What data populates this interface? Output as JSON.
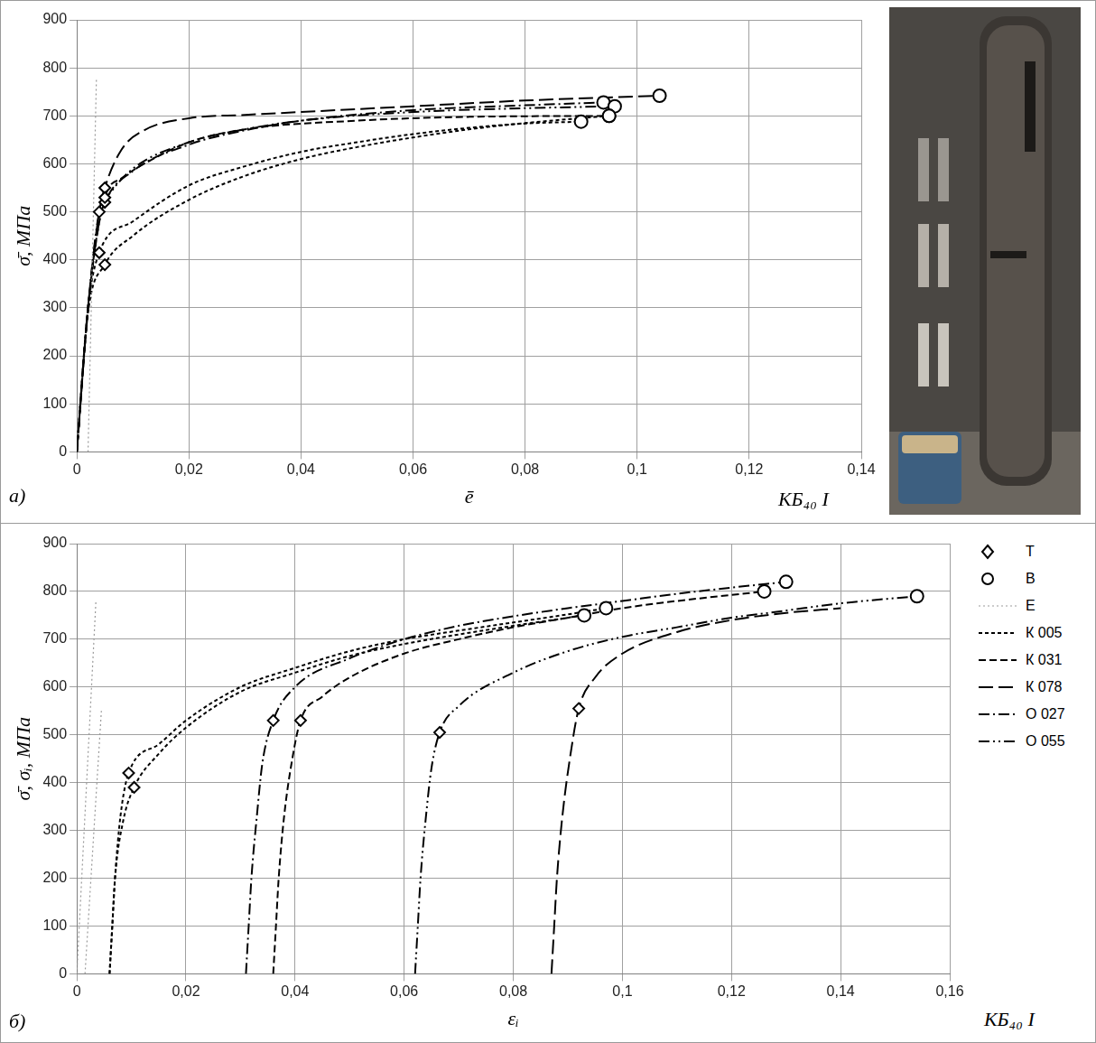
{
  "chart_data": [
    {
      "type": "line",
      "x_label": "ē",
      "y_label": "σ̄, МПа",
      "xlim": [
        0,
        0.14
      ],
      "ylim": [
        0,
        900
      ],
      "xticks": [
        0,
        {
          "value": 0.02,
          "label": "0,02"
        },
        {
          "value": 0.04,
          "label": "0,04"
        },
        {
          "value": 0.06,
          "label": "0,06"
        },
        {
          "value": 0.08,
          "label": "0,08"
        },
        {
          "value": 0.1,
          "label": "0,1"
        },
        {
          "value": 0.12,
          "label": "0,12"
        },
        {
          "value": 0.14,
          "label": "0,14"
        }
      ],
      "yticks": [
        0,
        100,
        200,
        300,
        400,
        500,
        600,
        700,
        800,
        900
      ],
      "grid": true,
      "annotations": [
        "а)",
        "КБ₄₀ I"
      ],
      "series": [
        {
          "type": "line",
          "color": "#999999",
          "line_style": "dotted",
          "x": [
            0.002,
            0.0035
          ],
          "values": [
            0,
            780
          ]
        },
        {
          "type": "line",
          "color": "#000000",
          "line_style": "long_dash",
          "x": [
            0,
            0.002,
            0.004,
            0.005,
            0.008,
            0.012,
            0.02,
            0.03,
            0.04,
            0.06,
            0.08,
            0.104
          ],
          "values": [
            0,
            300,
            500,
            550,
            630,
            670,
            695,
            702,
            708,
            720,
            732,
            742
          ]
        },
        {
          "type": "line",
          "color": "#000000",
          "line_style": "dash_dot",
          "x": [
            0,
            0.002,
            0.004,
            0.005,
            0.01,
            0.02,
            0.03,
            0.04,
            0.06,
            0.08,
            0.094
          ],
          "values": [
            0,
            300,
            480,
            520,
            585,
            640,
            670,
            690,
            712,
            722,
            728
          ]
        },
        {
          "type": "line",
          "color": "#000000",
          "line_style": "dash_dot_dot",
          "x": [
            0,
            0.002,
            0.004,
            0.006,
            0.01,
            0.02,
            0.03,
            0.04,
            0.06,
            0.08,
            0.096
          ],
          "values": [
            0,
            300,
            500,
            540,
            590,
            645,
            672,
            690,
            708,
            716,
            720
          ]
        },
        {
          "type": "line",
          "color": "#000000",
          "line_style": "dashed",
          "x": [
            0,
            0.002,
            0.005,
            0.008,
            0.012,
            0.02,
            0.03,
            0.05,
            0.07,
            0.095
          ],
          "values": [
            0,
            300,
            530,
            570,
            600,
            645,
            672,
            690,
            698,
            700
          ]
        },
        {
          "type": "line",
          "color": "#000000",
          "line_style": "short_dash",
          "x": [
            0,
            0.002,
            0.004,
            0.01,
            0.02,
            0.03,
            0.04,
            0.05,
            0.06,
            0.07,
            0.08,
            0.09
          ],
          "values": [
            0,
            300,
            415,
            480,
            555,
            595,
            625,
            645,
            662,
            675,
            684,
            688
          ]
        },
        {
          "type": "line",
          "color": "#000000",
          "line_style": "short_dash",
          "x": [
            0,
            0.002,
            0.005,
            0.01,
            0.02,
            0.03,
            0.04,
            0.05,
            0.06,
            0.07,
            0.08,
            0.095
          ],
          "values": [
            0,
            290,
            390,
            450,
            525,
            575,
            610,
            635,
            655,
            672,
            685,
            700
          ]
        },
        {
          "type": "scatter",
          "color": "#000000",
          "marker": "diamond",
          "x": [
            0.005,
            0.005,
            0.004,
            0.005,
            0.004,
            0.005
          ],
          "values": [
            550,
            520,
            500,
            530,
            415,
            390
          ]
        },
        {
          "type": "scatter",
          "color": "#000000",
          "marker": "circle",
          "x": [
            0.104,
            0.094,
            0.096,
            0.095,
            0.09,
            0.095
          ],
          "values": [
            742,
            728,
            720,
            700,
            688,
            700
          ]
        }
      ]
    },
    {
      "type": "line",
      "x_label": "εᵢ",
      "y_label": "σ̄, σᵢ, МПа",
      "xlim": [
        0,
        0.16
      ],
      "ylim": [
        0,
        900
      ],
      "xticks": [
        0,
        {
          "value": 0.02,
          "label": "0,02"
        },
        {
          "value": 0.04,
          "label": "0,04"
        },
        {
          "value": 0.06,
          "label": "0,06"
        },
        {
          "value": 0.08,
          "label": "0,08"
        },
        {
          "value": 0.1,
          "label": "0,1"
        },
        {
          "value": 0.12,
          "label": "0,12"
        },
        {
          "value": 0.14,
          "label": "0,14"
        },
        {
          "value": 0.16,
          "label": "0,16"
        }
      ],
      "yticks": [
        0,
        100,
        200,
        300,
        400,
        500,
        600,
        700,
        800,
        900
      ],
      "grid": true,
      "legend": "right",
      "annotations": [
        "б)",
        "КБ₄₀ I"
      ],
      "series": [
        {
          "name": "Т",
          "type": "scatter",
          "color": "#000000",
          "marker": "diamond",
          "x": [
            0.0095,
            0.0105,
            0.036,
            0.041,
            0.0665,
            0.092
          ],
          "values": [
            420,
            390,
            530,
            530,
            505,
            555
          ]
        },
        {
          "name": "В",
          "type": "scatter",
          "color": "#000000",
          "marker": "circle",
          "x": [
            0.093,
            0.097,
            0.126,
            0.13,
            0.154
          ],
          "values": [
            750,
            765,
            800,
            820,
            790
          ]
        },
        {
          "name": "E",
          "type": "line",
          "color": "#999999",
          "line_style": "dotted",
          "x": [
            0,
            0.0035
          ],
          "values": [
            0,
            780
          ]
        },
        {
          "type": "line",
          "color": "#999999",
          "line_style": "dotted",
          "x": [
            0.0015,
            0.0045
          ],
          "values": [
            0,
            550
          ]
        },
        {
          "name": "К 005",
          "type": "line",
          "color": "#000000",
          "line_style": "short_dash",
          "x": [
            0.006,
            0.0065,
            0.007,
            0.008,
            0.0095,
            0.015,
            0.02,
            0.03,
            0.04,
            0.05,
            0.06,
            0.07,
            0.08,
            0.09,
            0.097
          ],
          "values": [
            0,
            100,
            200,
            330,
            420,
            480,
            530,
            600,
            640,
            675,
            700,
            718,
            735,
            752,
            765
          ]
        },
        {
          "type": "line",
          "color": "#000000",
          "line_style": "short_dash",
          "x": [
            0.006,
            0.0065,
            0.007,
            0.0085,
            0.0105,
            0.015,
            0.02,
            0.03,
            0.04,
            0.05,
            0.06,
            0.07,
            0.08,
            0.093
          ],
          "values": [
            0,
            100,
            200,
            320,
            390,
            460,
            515,
            590,
            630,
            665,
            690,
            710,
            728,
            750
          ]
        },
        {
          "name": "К 031",
          "type": "line",
          "color": "#000000",
          "line_style": "dashed",
          "x": [
            0.036,
            0.0365,
            0.037,
            0.038,
            0.0395,
            0.041,
            0.045,
            0.05,
            0.06,
            0.07,
            0.08,
            0.09,
            0.1,
            0.11,
            0.126
          ],
          "values": [
            0,
            100,
            200,
            330,
            450,
            530,
            580,
            620,
            670,
            700,
            725,
            745,
            765,
            780,
            800
          ]
        },
        {
          "name": "К 078",
          "type": "line",
          "color": "#000000",
          "line_style": "long_dash",
          "x": [
            0.087,
            0.0875,
            0.088,
            0.089,
            0.0905,
            0.092,
            0.095,
            0.1,
            0.11,
            0.12,
            0.13,
            0.14
          ],
          "values": [
            0,
            100,
            200,
            330,
            460,
            555,
            620,
            670,
            715,
            740,
            755,
            765
          ]
        },
        {
          "name": "О 027",
          "type": "line",
          "color": "#000000",
          "line_style": "dash_dot",
          "x": [
            0.031,
            0.0315,
            0.032,
            0.033,
            0.034,
            0.036,
            0.04,
            0.05,
            0.06,
            0.07,
            0.08,
            0.09,
            0.1,
            0.11,
            0.12,
            0.13
          ],
          "values": [
            0,
            100,
            200,
            330,
            440,
            530,
            600,
            660,
            700,
            728,
            748,
            765,
            780,
            795,
            808,
            820
          ]
        },
        {
          "name": "О 055",
          "type": "line",
          "color": "#000000",
          "line_style": "dash_dot_dot",
          "x": [
            0.062,
            0.0625,
            0.063,
            0.064,
            0.065,
            0.0665,
            0.07,
            0.08,
            0.09,
            0.1,
            0.11,
            0.12,
            0.13,
            0.14,
            0.154
          ],
          "values": [
            0,
            100,
            200,
            330,
            430,
            505,
            560,
            630,
            675,
            705,
            725,
            745,
            760,
            775,
            790
          ]
        }
      ]
    }
  ]
}
